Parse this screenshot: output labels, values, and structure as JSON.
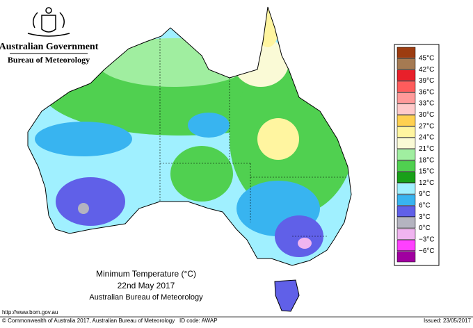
{
  "header": {
    "agency": "Australian Government",
    "bureau": "Bureau of Meteorology"
  },
  "legend": {
    "labels": [
      "45°C",
      "42°C",
      "39°C",
      "36°C",
      "33°C",
      "30°C",
      "27°C",
      "24°C",
      "21°C",
      "18°C",
      "15°C",
      "12°C",
      "9°C",
      "6°C",
      "3°C",
      "0°C",
      "−3°C",
      "−6°C"
    ],
    "colors": [
      "#9c3c10",
      "#a57a52",
      "#e8202a",
      "#ff5c5c",
      "#ff9a9a",
      "#ffcaca",
      "#ffd050",
      "#fff5a0",
      "#fafad6",
      "#a0eea0",
      "#50d050",
      "#18a018",
      "#a0f0ff",
      "#38b4f0",
      "#6060e8",
      "#b4b4c0",
      "#f0b4f0",
      "#ff40ff",
      "#a000a0"
    ]
  },
  "map_title": {
    "line1": "Minimum Temperature (°C)",
    "line2": "22nd May 2017",
    "line3": "Australian Bureau of Meteorology"
  },
  "footer": {
    "url": "http://www.bom.gov.au",
    "copyright": "© Commonwealth of Australia 2017, Australian Bureau of Meteorology",
    "id_code": "ID code: AWAP",
    "issued": "Issued: 23/05/2017"
  }
}
